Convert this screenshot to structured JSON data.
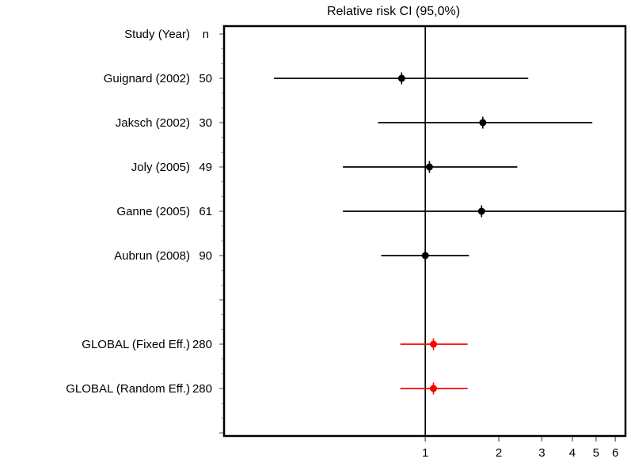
{
  "chart_data": {
    "type": "forest",
    "title": "Relative risk CI (95,0%)",
    "columns": {
      "study": "Study (Year)",
      "n": "n"
    },
    "x_scale": "log",
    "x_ticks": [
      1,
      2,
      3,
      4,
      5,
      6
    ],
    "xlim": [
      0.15,
      6.6
    ],
    "reference_line": 1,
    "grid": false,
    "colors": {
      "study": "#000000",
      "summary": "#ff0000",
      "axis": "#000000",
      "tick": "#777777",
      "minor_tick": "#aaaaaa"
    },
    "rows": [
      {
        "label": "Guignard (2002)",
        "n": "50",
        "rr": 0.8,
        "ci_low": 0.24,
        "ci_high": 2.64,
        "group": "study",
        "slot": 1
      },
      {
        "label": "Jaksch (2002)",
        "n": "30",
        "rr": 1.72,
        "ci_low": 0.64,
        "ci_high": 4.83,
        "group": "study",
        "slot": 2
      },
      {
        "label": "Joly (2005)",
        "n": "49",
        "rr": 1.04,
        "ci_low": 0.46,
        "ci_high": 2.38,
        "group": "study",
        "slot": 3
      },
      {
        "label": "Ganne (2005)",
        "n": "61",
        "rr": 1.7,
        "ci_low": 0.46,
        "ci_high": 6.6,
        "group": "study",
        "slot": 4,
        "ci_high_clipped": true
      },
      {
        "label": "Aubrun (2008)",
        "n": "90",
        "rr": 1.0,
        "ci_low": 0.66,
        "ci_high": 1.51,
        "group": "study",
        "slot": 5
      },
      {
        "label": "GLOBAL (Fixed Eff.)",
        "n": "280",
        "rr": 1.08,
        "ci_low": 0.79,
        "ci_high": 1.49,
        "group": "summary",
        "slot": 7
      },
      {
        "label": "GLOBAL (Random Eff.)",
        "n": "280",
        "rr": 1.08,
        "ci_low": 0.79,
        "ci_high": 1.49,
        "group": "summary",
        "slot": 8
      }
    ]
  }
}
